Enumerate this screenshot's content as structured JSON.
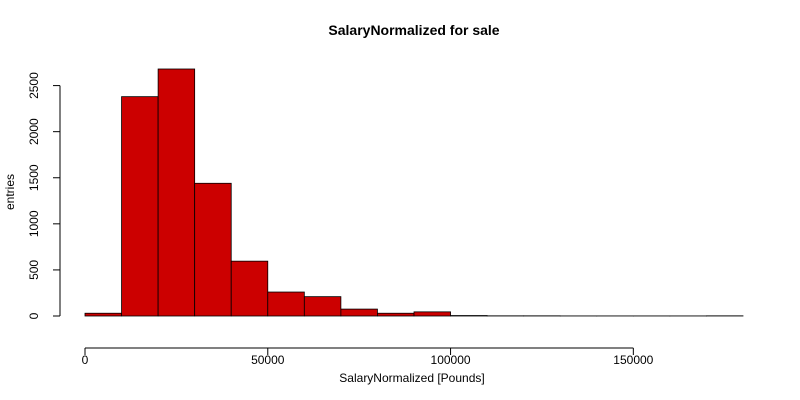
{
  "chart_data": {
    "type": "bar",
    "title": "SalaryNormalized for sale",
    "xlabel": "SalaryNormalized [Pounds]",
    "ylabel": "entries",
    "bin_edges": [
      0,
      10000,
      20000,
      30000,
      40000,
      50000,
      60000,
      70000,
      80000,
      90000,
      100000,
      110000,
      120000,
      130000,
      140000,
      150000,
      160000,
      170000,
      180000
    ],
    "values": [
      30,
      2380,
      2680,
      1440,
      595,
      260,
      210,
      75,
      30,
      45,
      5,
      2,
      2,
      1,
      1,
      1,
      1,
      2
    ],
    "xlim": [
      0,
      180000
    ],
    "ylim": [
      0,
      2680
    ],
    "x_ticks": [
      0,
      50000,
      100000,
      150000
    ],
    "y_ticks": [
      0,
      500,
      1000,
      1500,
      2000,
      2500
    ],
    "x_tick_labels": [
      "0",
      "50000",
      "100000",
      "150000"
    ],
    "y_tick_labels": [
      "0",
      "500",
      "1000",
      "1500",
      "2000",
      "2500"
    ],
    "bar_color": "#cc0000",
    "grid": false,
    "legend": "none"
  }
}
